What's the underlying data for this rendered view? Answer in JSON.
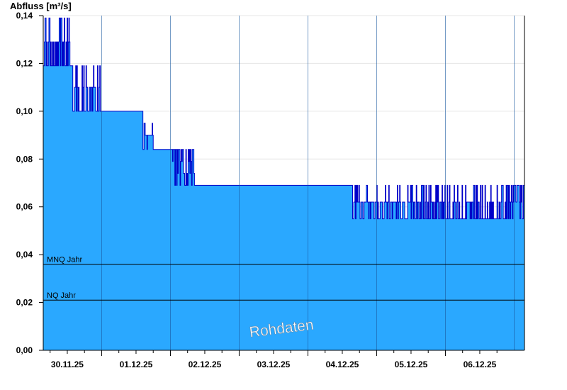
{
  "chart_data": {
    "type": "area",
    "ylabel": "Abfluss [m³/s]",
    "ylim": [
      0,
      0.14
    ],
    "y_ticks": [
      "0,00",
      "0,02",
      "0,04",
      "0,06",
      "0,08",
      "0,10",
      "0,12",
      "0,14"
    ],
    "x_tick_labels": [
      "30.11.25",
      "01.12.25",
      "02.12.25",
      "03.12.25",
      "04.12.25",
      "05.12.25",
      "06.12.25"
    ],
    "x_days_range": [
      -0.35,
      6.65
    ],
    "grid": "horizontal-light",
    "series": [
      {
        "values_description": "Abfluss",
        "segments": [
          {
            "from_day": -0.35,
            "to_day": 0.08,
            "base": 0.119,
            "flicker": [
              0.129,
              0.139
            ]
          },
          {
            "from_day": 0.08,
            "to_day": 0.48,
            "base": 0.1,
            "flicker": [
              0.11,
              0.119
            ]
          },
          {
            "from_day": 0.48,
            "to_day": 1.1,
            "base": 0.1,
            "flicker": []
          },
          {
            "from_day": 1.1,
            "to_day": 1.25,
            "base": 0.09,
            "flicker": [
              0.084,
              0.095,
              0.1
            ]
          },
          {
            "from_day": 1.25,
            "to_day": 1.48,
            "base": 0.084,
            "flicker": []
          },
          {
            "from_day": 1.48,
            "to_day": 1.85,
            "base": 0.084,
            "flicker": [
              0.079,
              0.074,
              0.069
            ]
          },
          {
            "from_day": 1.85,
            "to_day": 4.15,
            "base": 0.069,
            "flicker": []
          },
          {
            "from_day": 4.15,
            "to_day": 5.0,
            "base": 0.062,
            "flicker": [
              0.055,
              0.069
            ]
          },
          {
            "from_day": 5.0,
            "to_day": 6.3,
            "base": 0.055,
            "flicker": [
              0.062,
              0.069
            ]
          },
          {
            "from_day": 6.3,
            "to_day": 6.65,
            "base": 0.069,
            "flicker": [
              0.055,
              0.062
            ]
          }
        ]
      }
    ],
    "reference_lines": [
      {
        "label": "MNQ Jahr",
        "value": 0.036
      },
      {
        "label": "NQ Jahr",
        "value": 0.021
      }
    ],
    "watermark": "Rohdaten",
    "colors": {
      "fill": "#2aa8ff",
      "line": "#0000c8",
      "grid": "#e6e6e6",
      "axis": "#000000",
      "day_separator": "#1a5aa0"
    }
  }
}
